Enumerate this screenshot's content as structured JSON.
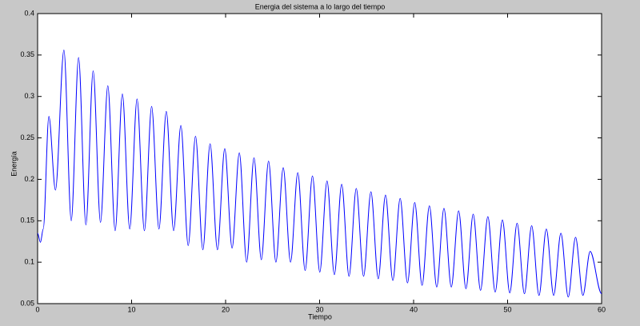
{
  "chart_data": {
    "type": "line",
    "title": "Energia del sistema a lo largo del tiempo",
    "xlabel": "Tiempo",
    "ylabel": "Energía",
    "xlim": [
      0,
      60
    ],
    "xticks": [
      0,
      10,
      20,
      30,
      40,
      50,
      60
    ],
    "ylim": [
      0.05,
      0.4
    ],
    "yticks": [
      0.05,
      0.1,
      0.15,
      0.2,
      0.25,
      0.3,
      0.35,
      0.4
    ],
    "grid": false,
    "series": [
      {
        "name": "Energia",
        "color": "#0000ff",
        "x": [
          0,
          0.3,
          0.6,
          1.2,
          1.9,
          2.8,
          3.58,
          4.36,
          5.14,
          5.91,
          6.69,
          7.47,
          8.25,
          9.02,
          9.8,
          10.58,
          11.36,
          12.13,
          12.91,
          13.69,
          14.47,
          15.24,
          16.02,
          16.8,
          17.58,
          18.35,
          19.13,
          19.91,
          20.69,
          21.46,
          22.24,
          23.02,
          23.8,
          24.57,
          25.35,
          26.13,
          26.91,
          27.68,
          28.46,
          29.24,
          30.02,
          30.79,
          31.57,
          32.35,
          33.13,
          33.9,
          34.68,
          35.46,
          36.24,
          37.01,
          37.79,
          38.57,
          39.35,
          40.12,
          40.9,
          41.68,
          42.46,
          43.23,
          44.01,
          44.79,
          45.57,
          46.34,
          47.12,
          47.9,
          48.68,
          49.45,
          50.23,
          51.01,
          51.79,
          52.56,
          53.34,
          54.12,
          54.9,
          55.67,
          56.45,
          57.23,
          58.01,
          58.78,
          60
        ],
        "values": [
          0.135,
          0.124,
          0.14,
          0.276,
          0.187,
          0.356,
          0.15,
          0.347,
          0.145,
          0.331,
          0.148,
          0.313,
          0.138,
          0.303,
          0.14,
          0.297,
          0.138,
          0.288,
          0.14,
          0.282,
          0.138,
          0.265,
          0.12,
          0.252,
          0.115,
          0.243,
          0.115,
          0.237,
          0.117,
          0.232,
          0.1,
          0.226,
          0.103,
          0.222,
          0.1,
          0.214,
          0.1,
          0.208,
          0.09,
          0.204,
          0.088,
          0.198,
          0.085,
          0.194,
          0.083,
          0.189,
          0.083,
          0.185,
          0.08,
          0.181,
          0.078,
          0.177,
          0.075,
          0.172,
          0.072,
          0.168,
          0.07,
          0.165,
          0.07,
          0.162,
          0.068,
          0.158,
          0.066,
          0.155,
          0.064,
          0.151,
          0.063,
          0.147,
          0.062,
          0.144,
          0.06,
          0.14,
          0.06,
          0.135,
          0.058,
          0.13,
          0.06,
          0.113,
          0.062
        ]
      }
    ]
  }
}
